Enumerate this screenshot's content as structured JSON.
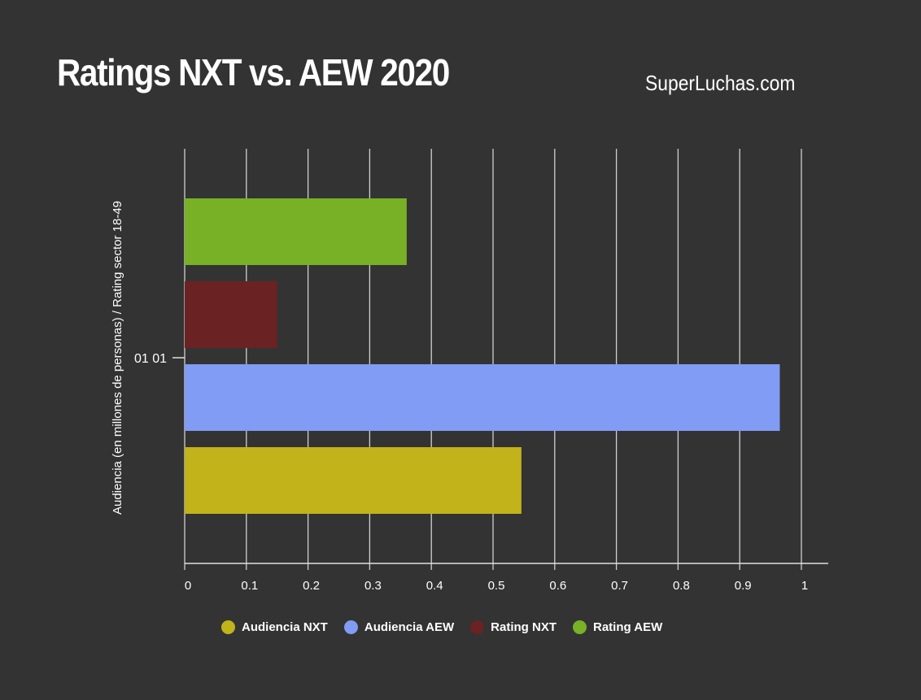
{
  "chart_data": {
    "type": "bar",
    "orientation": "horizontal",
    "title": "Ratings NXT vs. AEW 2020",
    "source": "SuperLuchas.com",
    "ylabel": "Audiencia (en millones de personas) / Rating sector 18-49",
    "xlabel": "",
    "categories": [
      "01 01"
    ],
    "xlim": [
      0,
      1
    ],
    "xticks": [
      "0",
      "0.1",
      "0.2",
      "0.3",
      "0.4",
      "0.5",
      "0.6",
      "0.7",
      "0.8",
      "0.9",
      "1"
    ],
    "grid": true,
    "legend_position": "bottom",
    "series": [
      {
        "name": "Audiencia NXT",
        "values": [
          0.546
        ],
        "color": "#c2b31a"
      },
      {
        "name": "Audiencia AEW",
        "values": [
          0.965
        ],
        "color": "#809cf4"
      },
      {
        "name": "Rating NXT",
        "values": [
          0.15
        ],
        "color": "#6b2222"
      },
      {
        "name": "Rating AEW",
        "values": [
          0.36
        ],
        "color": "#78b126"
      }
    ]
  }
}
